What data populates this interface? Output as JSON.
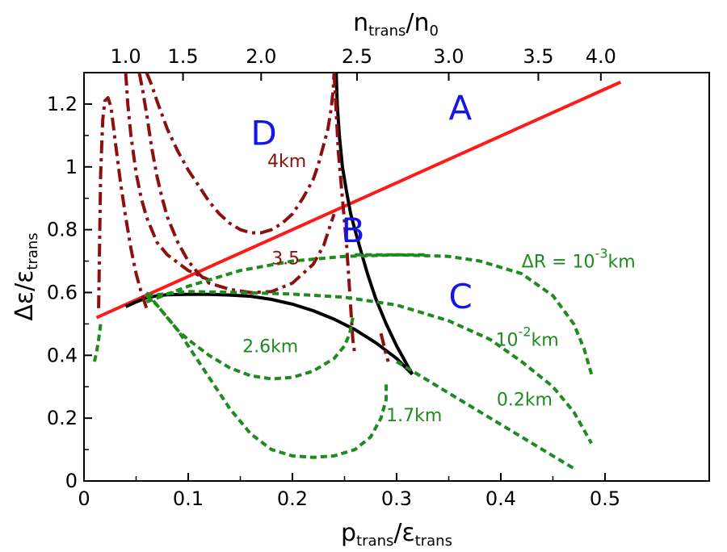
{
  "chart_data": {
    "type": "line",
    "title": "",
    "xlabel": {
      "main": "p",
      "sub": "trans",
      "sep": "/",
      "main2": "ε",
      "sub2": "trans"
    },
    "ylabel": {
      "main": "Δε",
      "sub": "",
      "sep": "/",
      "main2": "ε",
      "sub2": "trans"
    },
    "top_xlabel": {
      "main": "n",
      "sub": "trans",
      "sep": "/",
      "main2": "n",
      "sub2": "0"
    },
    "xlim": [
      0,
      0.6
    ],
    "ylim": [
      0,
      1.3
    ],
    "x_ticks": [
      "0",
      "0.1",
      "0.2",
      "0.3",
      "0.4",
      "0.5"
    ],
    "y_ticks": [
      "0",
      "0.2",
      "0.4",
      "0.6",
      "0.8",
      "1",
      "1.2"
    ],
    "top_ticks": [
      {
        "label": "1.0",
        "x": 0.04
      },
      {
        "label": "1.5",
        "x": 0.095
      },
      {
        "label": "2.0",
        "x": 0.17
      },
      {
        "label": "2.5",
        "x": 0.262
      },
      {
        "label": "3.0",
        "x": 0.35
      },
      {
        "label": "3.5",
        "x": 0.436
      },
      {
        "label": "4.0",
        "x": 0.496
      }
    ],
    "colors": {
      "red": "#ff1a1a",
      "darkred": "#8b1010",
      "green": "#1f8a1f",
      "black": "#000000",
      "blue": "#1515e6"
    },
    "series": [
      {
        "name": "",
        "style": "red-solid",
        "x": [
          0.012,
          0.515
        ],
        "y": [
          0.52,
          1.27
        ]
      },
      {
        "name": "",
        "style": "black-solid",
        "x": [
          0.242,
          0.243,
          0.245,
          0.248,
          0.252,
          0.256,
          0.26,
          0.265,
          0.272,
          0.28,
          0.29,
          0.3,
          0.31,
          0.315
        ],
        "y": [
          1.3,
          1.2,
          1.1,
          1.0,
          0.92,
          0.85,
          0.8,
          0.74,
          0.66,
          0.58,
          0.5,
          0.43,
          0.37,
          0.34
        ]
      },
      {
        "name": "",
        "style": "black-solid",
        "x": [
          0.04,
          0.05,
          0.06,
          0.07,
          0.08,
          0.1,
          0.12,
          0.14,
          0.16,
          0.18,
          0.2,
          0.22,
          0.24,
          0.26,
          0.28,
          0.3,
          0.315
        ],
        "y": [
          0.555,
          0.57,
          0.583,
          0.59,
          0.593,
          0.594,
          0.594,
          0.592,
          0.588,
          0.578,
          0.563,
          0.542,
          0.515,
          0.482,
          0.44,
          0.39,
          0.34
        ]
      },
      {
        "name": "",
        "style": "darkred-dashdot",
        "x": [
          0.014,
          0.016,
          0.018,
          0.02,
          0.023,
          0.026,
          0.03,
          0.035,
          0.04,
          0.045,
          0.05,
          0.055,
          0.06
        ],
        "y": [
          0.55,
          0.98,
          1.15,
          1.21,
          1.22,
          1.19,
          1.08,
          0.95,
          0.84,
          0.74,
          0.66,
          0.6,
          0.55
        ]
      },
      {
        "name": "",
        "style": "darkred-dashdot",
        "x": [
          0.04,
          0.042,
          0.045,
          0.05,
          0.055,
          0.06,
          0.07,
          0.08,
          0.1,
          0.12
        ],
        "y": [
          1.3,
          1.2,
          1.1,
          0.98,
          0.9,
          0.84,
          0.76,
          0.72,
          0.67,
          0.64
        ]
      },
      {
        "name": "",
        "style": "darkred-dashdot",
        "x": [
          0.053,
          0.056,
          0.06,
          0.065,
          0.07,
          0.075,
          0.08,
          0.09,
          0.1,
          0.11,
          0.12,
          0.14,
          0.16,
          0.18,
          0.2,
          0.22,
          0.23,
          0.235,
          0.24
        ],
        "y": [
          1.3,
          1.25,
          1.17,
          1.06,
          0.97,
          0.9,
          0.84,
          0.76,
          0.7,
          0.66,
          0.63,
          0.61,
          0.6,
          0.603,
          0.63,
          0.69,
          0.75,
          0.8,
          0.85
        ]
      },
      {
        "name": "",
        "style": "darkred-dashdot",
        "x": [
          0.06,
          0.065,
          0.07,
          0.08,
          0.09,
          0.1,
          0.11,
          0.12,
          0.13,
          0.14,
          0.15,
          0.16,
          0.17,
          0.18,
          0.19,
          0.2,
          0.21,
          0.22,
          0.225,
          0.23,
          0.234,
          0.237,
          0.239,
          0.24
        ],
        "y": [
          1.3,
          1.26,
          1.21,
          1.12,
          1.05,
          0.99,
          0.94,
          0.89,
          0.85,
          0.82,
          0.8,
          0.79,
          0.79,
          0.8,
          0.82,
          0.85,
          0.9,
          0.96,
          1.01,
          1.07,
          1.12,
          1.18,
          1.24,
          1.3
        ]
      },
      {
        "name": "",
        "style": "darkred-dashdot",
        "x": [
          0.24,
          0.244,
          0.248,
          0.252,
          0.254,
          0.256,
          0.258,
          0.26
        ],
        "y": [
          1.3,
          1.05,
          0.9,
          0.75,
          0.65,
          0.55,
          0.45,
          0.4
        ]
      },
      {
        "name": "",
        "style": "darkred-dashdot",
        "x": [
          0.285,
          0.288,
          0.29,
          0.292
        ],
        "y": [
          0.47,
          0.43,
          0.4,
          0.38
        ]
      },
      {
        "name": "",
        "style": "green-dashed",
        "x": [
          0.01,
          0.012,
          0.014,
          0.016
        ],
        "y": [
          0.38,
          0.41,
          0.45,
          0.5
        ]
      },
      {
        "name": "",
        "style": "green-dashed",
        "x": [
          0.06,
          0.1,
          0.15,
          0.2,
          0.25,
          0.3,
          0.35,
          0.38,
          0.42,
          0.45,
          0.47,
          0.48,
          0.487
        ],
        "y": [
          0.57,
          0.62,
          0.67,
          0.7,
          0.715,
          0.72,
          0.715,
          0.7,
          0.66,
          0.59,
          0.5,
          0.42,
          0.34
        ]
      },
      {
        "name": "",
        "style": "green-dashed",
        "x": [
          0.06,
          0.1,
          0.15,
          0.2,
          0.25,
          0.3,
          0.35,
          0.39,
          0.42,
          0.45,
          0.47,
          0.487
        ],
        "y": [
          0.59,
          0.603,
          0.6,
          0.595,
          0.585,
          0.56,
          0.51,
          0.45,
          0.38,
          0.3,
          0.22,
          0.12
        ]
      },
      {
        "name": "",
        "style": "green-dashed",
        "x": [
          0.06,
          0.07,
          0.08,
          0.09,
          0.1,
          0.12,
          0.14,
          0.16,
          0.18,
          0.2,
          0.22,
          0.24,
          0.25,
          0.255,
          0.258
        ],
        "y": [
          0.59,
          0.56,
          0.52,
          0.48,
          0.45,
          0.4,
          0.36,
          0.335,
          0.325,
          0.33,
          0.35,
          0.39,
          0.43,
          0.47,
          0.52
        ]
      },
      {
        "name": "",
        "style": "green-dashed",
        "x": [
          0.06,
          0.07,
          0.08,
          0.09,
          0.1,
          0.12,
          0.14,
          0.16,
          0.18,
          0.2,
          0.22,
          0.24,
          0.26,
          0.275,
          0.285,
          0.29,
          0.29
        ],
        "y": [
          0.6,
          0.56,
          0.52,
          0.48,
          0.43,
          0.33,
          0.23,
          0.15,
          0.1,
          0.08,
          0.075,
          0.08,
          0.1,
          0.14,
          0.2,
          0.26,
          0.32
        ]
      },
      {
        "name": "",
        "style": "green-dashed",
        "x": [
          0.3,
          0.33,
          0.36,
          0.39,
          0.42,
          0.45,
          0.47
        ],
        "y": [
          0.38,
          0.32,
          0.26,
          0.2,
          0.14,
          0.08,
          0.04
        ]
      },
      {
        "name": "",
        "style": "green-dashed",
        "x": [
          0.26,
          0.3,
          0.33
        ],
        "y": [
          0.72,
          0.72,
          0.72
        ]
      }
    ],
    "region_labels": [
      {
        "text": "A",
        "x": 0.35,
        "y": 1.15
      },
      {
        "text": "B",
        "x": 0.247,
        "y": 0.76
      },
      {
        "text": "C",
        "x": 0.35,
        "y": 0.55
      },
      {
        "text": "D",
        "x": 0.16,
        "y": 1.07
      }
    ],
    "annotations": [
      {
        "text": "4km",
        "x": 0.176,
        "y": 1.0,
        "color": "darkred"
      },
      {
        "text": "3.5",
        "x": 0.18,
        "y": 0.69,
        "color": "darkred"
      },
      {
        "text": "2.6km",
        "x": 0.152,
        "y": 0.41,
        "color": "green"
      },
      {
        "text": "1.7km",
        "x": 0.29,
        "y": 0.19,
        "color": "green"
      },
      {
        "text": "0.2km",
        "x": 0.396,
        "y": 0.24,
        "color": "green"
      },
      {
        "text": "10",
        "sup": "-2",
        "suffix": "km",
        "x": 0.395,
        "y": 0.43,
        "color": "green"
      },
      {
        "text": "ΔR = 10",
        "sup": "-3",
        "suffix": "km",
        "x": 0.42,
        "y": 0.68,
        "color": "green"
      }
    ]
  }
}
